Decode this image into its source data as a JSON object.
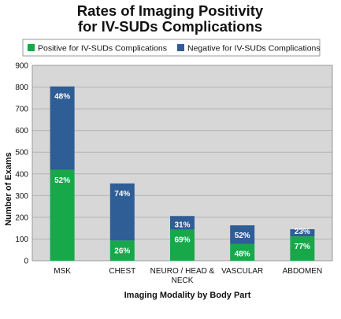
{
  "chart_data": {
    "type": "bar",
    "stacked": true,
    "title_lines": [
      "Rates of Imaging Positivity",
      "for IV-SUDs Complications"
    ],
    "xlabel": "Imaging Modality by Body Part",
    "ylabel": "Number of Exams",
    "ylim": [
      0,
      900
    ],
    "yticks": [
      0,
      100,
      200,
      300,
      400,
      500,
      600,
      700,
      800,
      900
    ],
    "grid": true,
    "legend_position": "top",
    "categories": [
      [
        "MSK"
      ],
      [
        "CHEST"
      ],
      [
        "NEURO / HEAD &",
        "NECK"
      ],
      [
        "VASCULAR"
      ],
      [
        "ABDOMEN"
      ]
    ],
    "series": [
      {
        "name": "Positive for IV-SUDs Complications",
        "color": "#17a84a",
        "values": [
          418,
          93,
          143,
          78,
          112
        ],
        "labels": [
          "52%",
          "26%",
          "69%",
          "48%",
          "77%"
        ]
      },
      {
        "name": "Negative for IV-SUDs Complications",
        "color": "#2f5d96",
        "values": [
          385,
          263,
          63,
          85,
          33
        ],
        "labels": [
          "48%",
          "74%",
          "31%",
          "52%",
          "23%"
        ]
      }
    ],
    "plot_background": "#d7d7d7",
    "gridline_color": "#b3b3b3"
  }
}
